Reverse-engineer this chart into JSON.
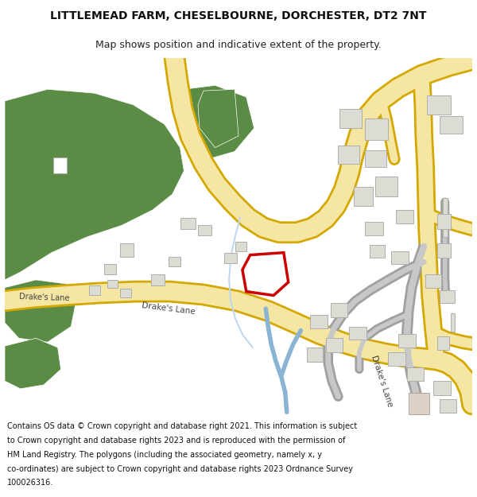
{
  "title_line1": "LITTLEMEAD FARM, CHESELBOURNE, DORCHESTER, DT2 7NT",
  "title_line2": "Map shows position and indicative extent of the property.",
  "footer": "Contains OS data © Crown copyright and database right 2021. This information is subject to Crown copyright and database rights 2023 and is reproduced with the permission of HM Land Registry. The polygons (including the associated geometry, namely x, y co-ordinates) are subject to Crown copyright and database rights 2023 Ordnance Survey 100026316.",
  "bg_color": "#ffffff",
  "road_color": "#f5e6a3",
  "road_border": "#d4a800",
  "green_color": "#5b8c45",
  "building_color": "#dcdbd4",
  "building_border": "#b0afa8",
  "red_color": "#cc0000",
  "water_color": "#8ab4d4",
  "gray_road_color": "#c8c8c8",
  "gray_road_border": "#a0a0a0",
  "title_fontsize": 10,
  "subtitle_fontsize": 9,
  "footer_fontsize": 7.0
}
